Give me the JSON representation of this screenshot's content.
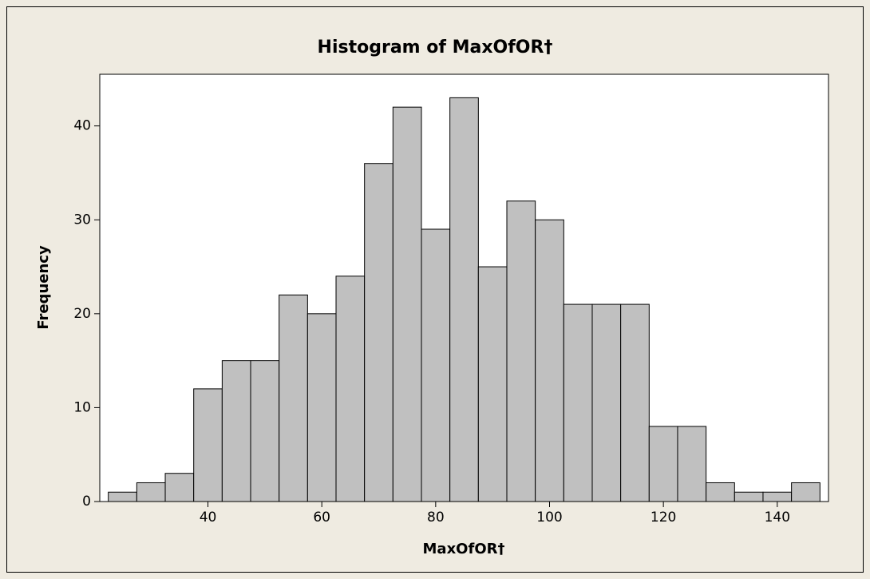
{
  "chart_data": {
    "type": "histogram",
    "title": "Histogram of MaxOfOR†",
    "x_label": "MaxOfOR†",
    "y_label": "Frequency",
    "bins": [
      22.5,
      27.5,
      32.5,
      37.5,
      42.5,
      47.5,
      52.5,
      57.5,
      62.5,
      67.5,
      72.5,
      77.5,
      82.5,
      87.5,
      92.5,
      97.5,
      102.5,
      107.5,
      112.5,
      117.5,
      122.5,
      127.5,
      132.5,
      137.5,
      142.5,
      147.5
    ],
    "values": [
      1,
      2,
      3,
      12,
      15,
      15,
      22,
      20,
      24,
      36,
      42,
      29,
      43,
      25,
      32,
      30,
      21,
      21,
      21,
      8,
      8,
      2,
      1,
      1,
      2
    ],
    "color": "#c0c0c0",
    "xlim": [
      21,
      149
    ],
    "xticks": [
      40,
      60,
      80,
      100,
      120,
      140
    ],
    "ylim": [
      0,
      45.5
    ],
    "yticks": [
      0,
      10,
      20,
      30,
      40
    ]
  }
}
